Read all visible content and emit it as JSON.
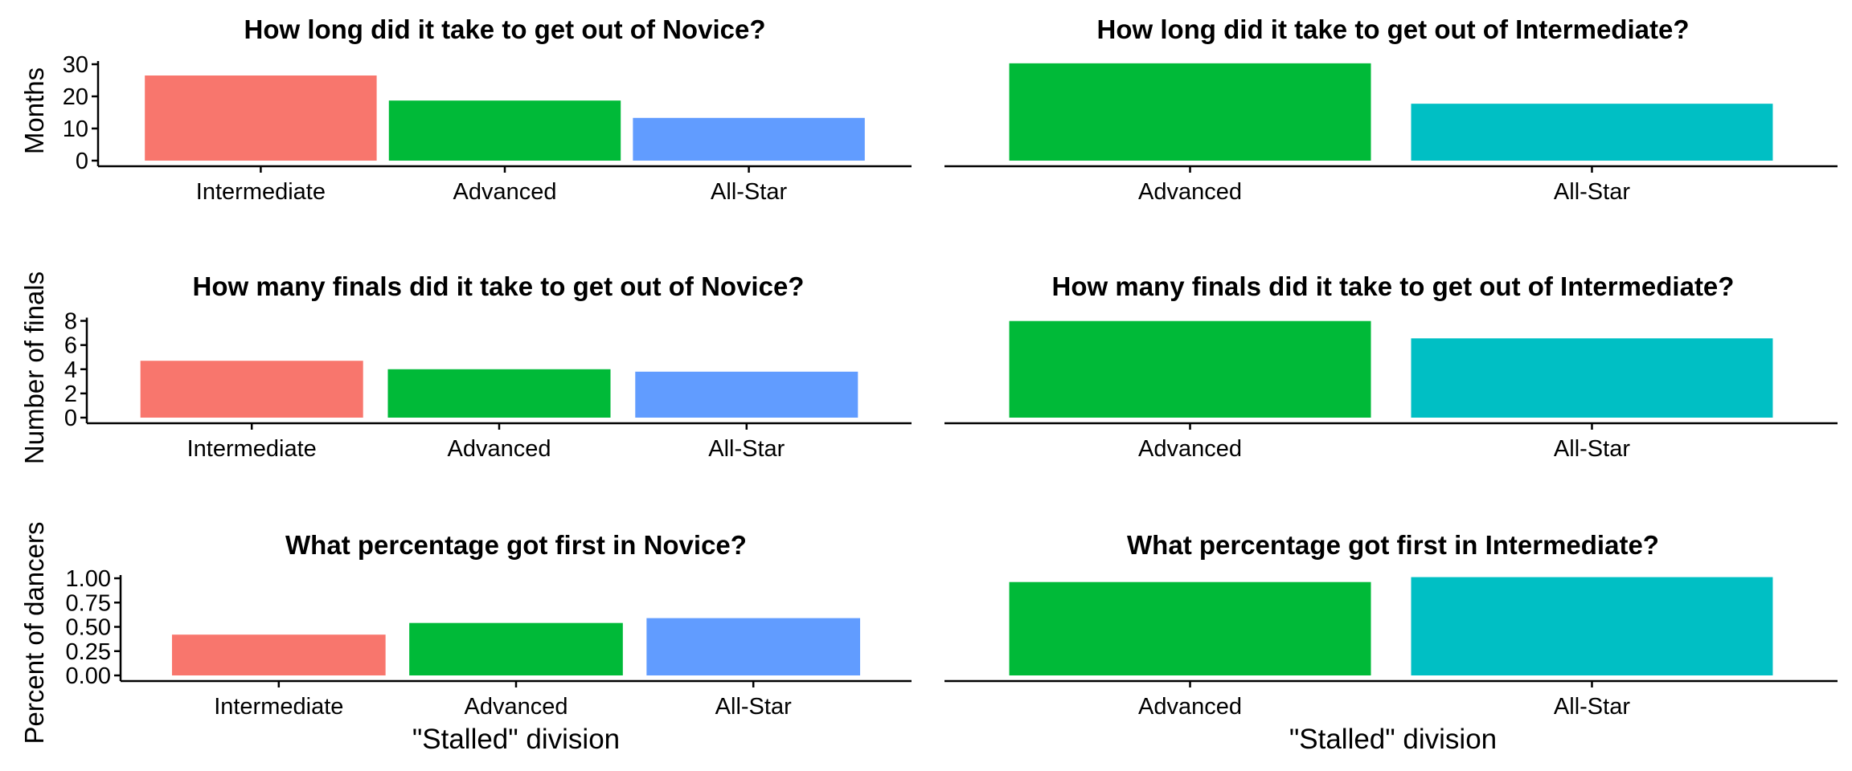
{
  "colors": {
    "Intermediate": "#F8766D",
    "Advanced": "#00BA38",
    "All-Star": "#619CFF",
    "All-Star-right": "#00BFC4"
  },
  "ylabels": {
    "row1": "Months",
    "row2": "Number of finals",
    "row3": "Percent of dancers"
  },
  "xlabels": {
    "left": "\"Stalled\" division",
    "right": "\"Stalled\" division"
  },
  "chart_data": [
    {
      "type": "bar",
      "title": "How long did it take to get out of Novice?",
      "categories": [
        "Intermediate",
        "Advanced",
        "All-Star"
      ],
      "values": [
        26.5,
        18.7,
        13.3
      ],
      "ylim": [
        0,
        32
      ],
      "yticks": [
        "0",
        "10",
        "20",
        "30"
      ],
      "ytick_values": [
        0,
        10,
        20,
        30
      ],
      "ylabel": "Months",
      "xlabel": ""
    },
    {
      "type": "bar",
      "title": "How long did it take to get out of Intermediate?",
      "categories": [
        "Advanced",
        "All-Star"
      ],
      "values": [
        26.5,
        15.5
      ],
      "ylim": [
        0,
        28
      ],
      "xlabel": ""
    },
    {
      "type": "bar",
      "title": "How many finals did it take to get out of Novice?",
      "categories": [
        "Intermediate",
        "Advanced",
        "All-Star"
      ],
      "values": [
        4.7,
        4.0,
        3.8
      ],
      "ylim": [
        0,
        8.5
      ],
      "yticks": [
        "0",
        "2",
        "4",
        "6",
        "8"
      ],
      "ytick_values": [
        0,
        2,
        4,
        6,
        8
      ],
      "ylabel": "Number of finals",
      "xlabel": ""
    },
    {
      "type": "bar",
      "title": "How many finals did it take to get out of Intermediate?",
      "categories": [
        "Advanced",
        "All-Star"
      ],
      "values": [
        7.8,
        6.4
      ],
      "ylim": [
        0,
        8.3
      ],
      "xlabel": ""
    },
    {
      "type": "bar",
      "title": "What percentage got first in Novice?",
      "categories": [
        "Intermediate",
        "Advanced",
        "All-Star"
      ],
      "values": [
        0.42,
        0.54,
        0.59
      ],
      "ylim": [
        0,
        1.05
      ],
      "yticks": [
        "0.00",
        "0.25",
        "0.50",
        "0.75",
        "1.00"
      ],
      "ytick_values": [
        0,
        0.25,
        0.5,
        0.75,
        1.0
      ],
      "ylabel": "Percent of dancers",
      "xlabel": "\"Stalled\" division"
    },
    {
      "type": "bar",
      "title": "What percentage got first in Intermediate?",
      "categories": [
        "Advanced",
        "All-Star"
      ],
      "values": [
        0.76,
        0.8
      ],
      "ylim": [
        0,
        0.83
      ],
      "xlabel": "\"Stalled\" division"
    }
  ]
}
